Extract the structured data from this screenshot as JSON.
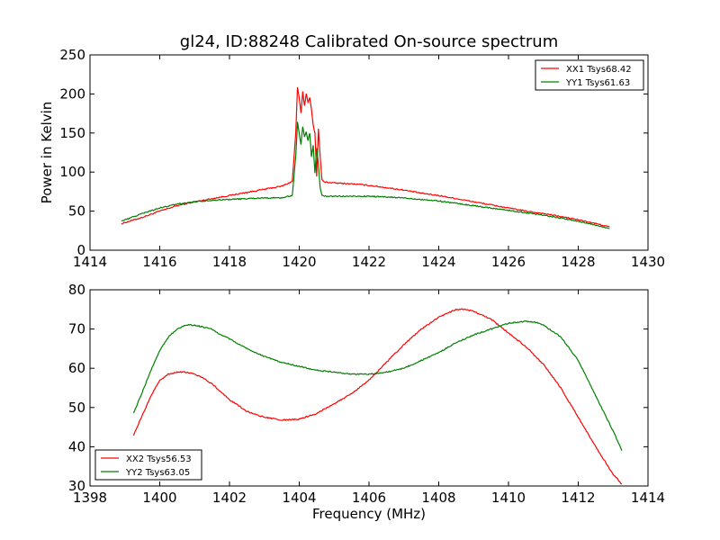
{
  "title": "gl24, ID:88248 Calibrated On-source spectrum",
  "chart_data": [
    {
      "type": "line",
      "xlabel": "",
      "ylabel": "Power in Kelvin",
      "xlim": [
        1414,
        1430
      ],
      "ylim": [
        0,
        250
      ],
      "xticks": [
        1414,
        1416,
        1418,
        1420,
        1422,
        1424,
        1426,
        1428,
        1430
      ],
      "yticks": [
        0,
        50,
        100,
        150,
        200,
        250
      ],
      "legend": "top-right",
      "series": [
        {
          "name": "XX1 Tsys68.42",
          "color": "#ff0000",
          "x": [
            1414.9,
            1415.5,
            1416.0,
            1416.5,
            1417.0,
            1417.5,
            1418.0,
            1418.5,
            1419.0,
            1419.5,
            1419.8,
            1419.9,
            1419.95,
            1420.0,
            1420.05,
            1420.1,
            1420.15,
            1420.2,
            1420.25,
            1420.3,
            1420.35,
            1420.4,
            1420.45,
            1420.5,
            1420.55,
            1420.6,
            1420.65,
            1420.7,
            1420.75,
            1420.8,
            1421.0,
            1421.5,
            1422.0,
            1422.5,
            1423.0,
            1423.5,
            1424.0,
            1424.5,
            1425.0,
            1425.5,
            1426.0,
            1426.5,
            1427.0,
            1427.5,
            1428.0,
            1428.5,
            1428.9
          ],
          "y": [
            34,
            42,
            50,
            57,
            62,
            66,
            70,
            74,
            78,
            82,
            88,
            150,
            208,
            195,
            175,
            203,
            185,
            200,
            190,
            195,
            180,
            160,
            150,
            95,
            155,
            120,
            90,
            88,
            87,
            87,
            86,
            85,
            83,
            80,
            77,
            73,
            70,
            66,
            62,
            58,
            54,
            50,
            47,
            43,
            39,
            34,
            30
          ]
        },
        {
          "name": "YY1 Tsys61.63",
          "color": "#008000",
          "x": [
            1414.9,
            1415.5,
            1416.0,
            1416.5,
            1417.0,
            1417.5,
            1418.0,
            1418.5,
            1419.0,
            1419.5,
            1419.8,
            1419.9,
            1419.95,
            1420.0,
            1420.05,
            1420.1,
            1420.15,
            1420.2,
            1420.25,
            1420.3,
            1420.35,
            1420.4,
            1420.45,
            1420.5,
            1420.55,
            1420.6,
            1420.65,
            1420.7,
            1420.75,
            1420.8,
            1421.0,
            1421.5,
            1422.0,
            1422.5,
            1423.0,
            1423.5,
            1424.0,
            1424.5,
            1425.0,
            1425.5,
            1426.0,
            1426.5,
            1427.0,
            1427.5,
            1428.0,
            1428.5,
            1428.9
          ],
          "y": [
            37,
            47,
            54,
            59,
            62,
            64,
            65,
            66,
            67,
            67,
            70,
            120,
            164,
            150,
            135,
            158,
            145,
            152,
            140,
            150,
            120,
            135,
            98,
            130,
            110,
            80,
            70,
            69,
            69,
            69,
            69,
            69,
            69,
            68,
            67,
            65,
            63,
            60,
            57,
            54,
            51,
            48,
            45,
            41,
            37,
            32,
            28
          ]
        }
      ]
    },
    {
      "type": "line",
      "xlabel": "Frequency (MHz)",
      "ylabel": "",
      "xlim": [
        1398,
        1414
      ],
      "ylim": [
        30,
        80
      ],
      "xticks": [
        1398,
        1400,
        1402,
        1404,
        1406,
        1408,
        1410,
        1412,
        1414
      ],
      "yticks": [
        30,
        40,
        50,
        60,
        70,
        80
      ],
      "legend": "bottom-left",
      "series": [
        {
          "name": "XX2 Tsys56.53",
          "color": "#ff0000",
          "x": [
            1399.25,
            1399.5,
            1399.75,
            1400.0,
            1400.25,
            1400.5,
            1400.75,
            1401.0,
            1401.25,
            1401.5,
            1401.75,
            1402.0,
            1402.5,
            1403.0,
            1403.5,
            1404.0,
            1404.5,
            1405.0,
            1405.5,
            1406.0,
            1406.5,
            1407.0,
            1407.5,
            1408.0,
            1408.5,
            1408.75,
            1409.0,
            1409.5,
            1410.0,
            1410.5,
            1411.0,
            1411.5,
            1412.0,
            1412.5,
            1413.0,
            1413.25
          ],
          "y": [
            43,
            48,
            53,
            57,
            58.5,
            59,
            59,
            58.5,
            57.5,
            56,
            54,
            52,
            49,
            47.5,
            46.8,
            47,
            48.5,
            51,
            53.5,
            57,
            61.5,
            66,
            70,
            73,
            75,
            75,
            74.5,
            72.5,
            69,
            65.5,
            61,
            55,
            47.5,
            40,
            33,
            30.5
          ]
        },
        {
          "name": "YY2 Tsys63.05",
          "color": "#008000",
          "x": [
            1399.25,
            1399.5,
            1399.75,
            1400.0,
            1400.25,
            1400.5,
            1400.75,
            1401.0,
            1401.25,
            1401.5,
            1401.75,
            1402.0,
            1402.5,
            1403.0,
            1403.5,
            1404.0,
            1404.5,
            1405.0,
            1405.5,
            1406.0,
            1406.5,
            1407.0,
            1407.5,
            1408.0,
            1408.5,
            1409.0,
            1409.5,
            1410.0,
            1410.5,
            1410.75,
            1411.0,
            1411.5,
            1412.0,
            1412.5,
            1413.0,
            1413.25
          ],
          "y": [
            48.5,
            54,
            59.5,
            64.5,
            68,
            70,
            71,
            71,
            70.5,
            70,
            68.5,
            67.5,
            65,
            63,
            61.5,
            60.5,
            59.5,
            59,
            58.5,
            58.5,
            59,
            60,
            62,
            64,
            66.5,
            68.5,
            70,
            71.5,
            72,
            71.8,
            71,
            68,
            62,
            53,
            44,
            39
          ]
        }
      ]
    }
  ]
}
